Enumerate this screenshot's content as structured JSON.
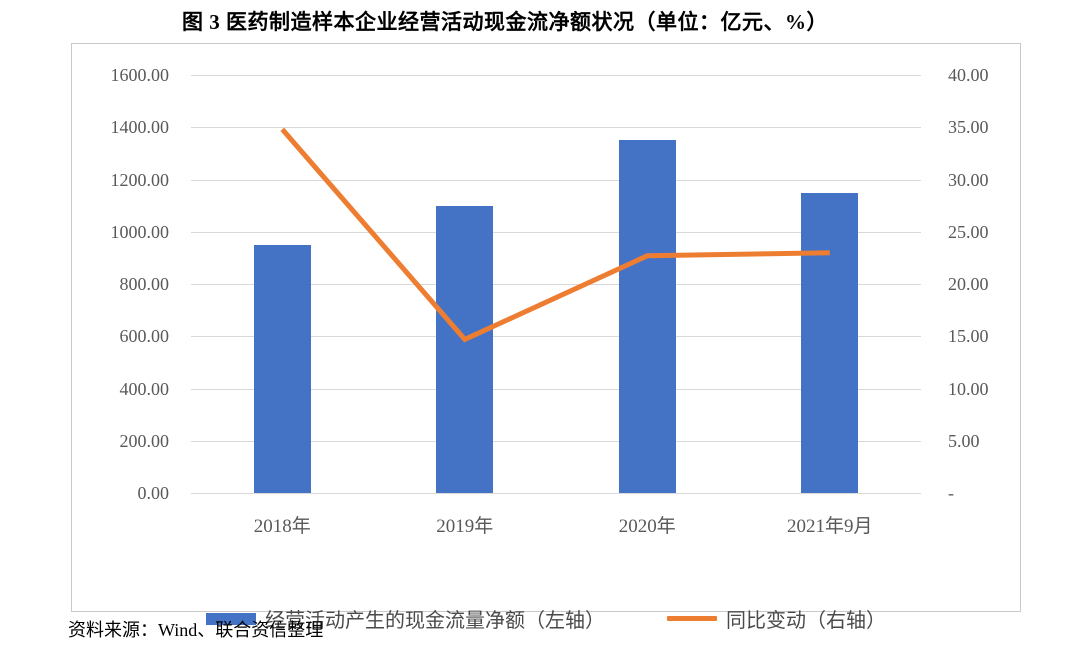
{
  "title": "图 3  医药制造样本企业经营活动现金流净额状况（单位：亿元、%）",
  "source": "资料来源：Wind、联合资信整理",
  "colors": {
    "bar": "#4472C4",
    "line": "#ED7D31",
    "grid": "#d9d9d9",
    "axis_text": "#595959"
  },
  "chart_data": {
    "type": "combo-bar-line",
    "categories": [
      "2018年",
      "2019年",
      "2020年",
      "2021年9月"
    ],
    "series": [
      {
        "name": "经营活动产生的现金流量净额（左轴）",
        "type": "bar",
        "axis": "left",
        "color": "#4472C4",
        "values": [
          950,
          1100,
          1350,
          1150
        ]
      },
      {
        "name": "同比变动（右轴）",
        "type": "line",
        "axis": "right",
        "color": "#ED7D31",
        "values": [
          34.8,
          14.7,
          22.7,
          23.0
        ]
      }
    ],
    "title": "图 3  医药制造样本企业经营活动现金流净额状况（单位：亿元、%）",
    "xlabel": "",
    "ylabel_left": "亿元",
    "ylabel_right": "%",
    "left_axis": {
      "min": 0,
      "max": 1600,
      "step": 200,
      "tick_labels": [
        "1600.00",
        "1400.00",
        "1200.00",
        "1000.00",
        "800.00",
        "600.00",
        "400.00",
        "200.00",
        "0.00"
      ]
    },
    "right_axis": {
      "min": 0,
      "max": 40,
      "step": 5,
      "tick_labels": [
        "40.00",
        "35.00",
        "30.00",
        "25.00",
        "20.00",
        "15.00",
        "10.00",
        "5.00",
        "-"
      ]
    },
    "grid": true,
    "legend_position": "bottom",
    "legend": [
      {
        "label": "经营活动产生的现金流量净额（左轴）",
        "marker": "bar",
        "color": "#4472C4"
      },
      {
        "label": "同比变动（右轴）",
        "marker": "line",
        "color": "#ED7D31"
      }
    ]
  }
}
